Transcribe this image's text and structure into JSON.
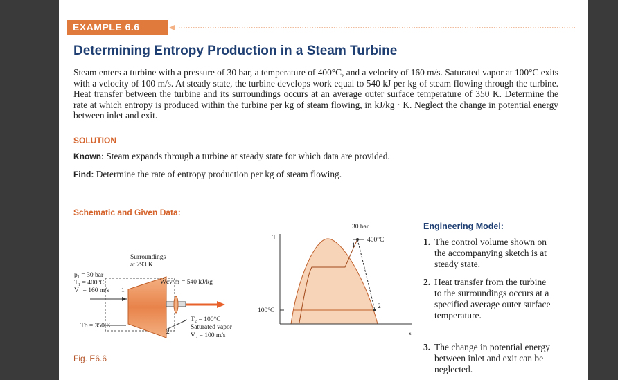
{
  "header": {
    "example": "EXAMPLE 6.6",
    "title": "Determining Entropy Production in a Steam Turbine"
  },
  "problem": "Steam enters a turbine with a pressure of 30 bar, a temperature of 400°C, and a velocity of 160 m/s. Saturated vapor at 100°C exits with a velocity of 100 m/s. At steady state, the turbine develops work equal to 540 kJ per kg of steam flowing through the turbine. Heat transfer between the turbine and its surroundings occurs at an average outer surface temperature of 350 K. Determine the rate at which entropy is produced within the turbine per kg of steam flowing, in kJ/kg · K. Neglect the change in potential energy between inlet and exit.",
  "solution": {
    "heading": "SOLUTION",
    "known_label": "Known:",
    "known": "Steam expands through a turbine at steady state for which data are provided.",
    "find_label": "Find:",
    "find": "Determine the rate of entropy production per kg of steam flowing."
  },
  "schematic": {
    "heading": "Schematic and Given Data:",
    "figure_label": "Fig. E6.6",
    "turbine": {
      "surroundings": "Surroundings",
      "surroundings_temp": "at 293 K",
      "p1": "p₁ = 30 bar",
      "t1": "T₁ = 400°C",
      "v1": "V₁ = 160 m/s",
      "state1": "1",
      "work_symbol": "Ẇcv/ṁ",
      "work_value": "= 540 kJ/kg",
      "tb": "Tb = 350 K",
      "state2": "2",
      "t2": "T₂ = 100°C",
      "exit_state": "Saturated vapor",
      "v2": "V₂ = 100 m/s"
    },
    "ts_diagram": {
      "y_axis": "T",
      "x_axis": "s",
      "pressure": "30 bar",
      "temp1": "400°C",
      "temp2": "100°C",
      "state1": "1",
      "state2": "2"
    }
  },
  "engineering_model": {
    "heading": "Engineering Model:",
    "items": [
      {
        "number": "1.",
        "text": "The control volume shown on the accompanying sketch is at steady state."
      },
      {
        "number": "2.",
        "text": "Heat transfer from the turbine to the surroundings occurs at a specified average outer surface temperature."
      },
      {
        "number": "3.",
        "text": "The change in potential energy between inlet and exit can be neglected."
      }
    ]
  }
}
